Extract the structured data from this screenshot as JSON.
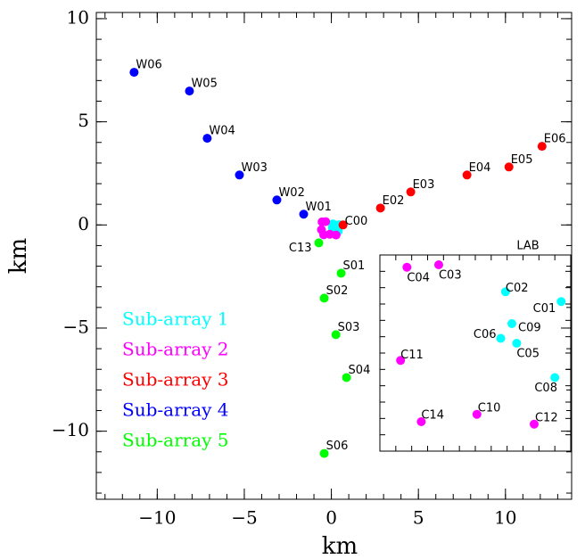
{
  "chart_data": {
    "type": "scatter",
    "x_label": "km",
    "y_label": "km",
    "xlim": [
      -13.5,
      13.8
    ],
    "ylim": [
      -13.3,
      10.3
    ],
    "xticks": [
      {
        "value": -10,
        "label": "−10"
      },
      {
        "value": -5,
        "label": "−5"
      },
      0,
      5,
      10
    ],
    "yticks": [
      {
        "value": -10,
        "label": "−10"
      },
      {
        "value": -5,
        "label": "−5"
      },
      0,
      5,
      10
    ],
    "legend": "lower left",
    "series": [
      {
        "name": "Sub-array 1",
        "color": "#00ffff",
        "labels": [
          "C01",
          "C02",
          "C05",
          "C06",
          "C08",
          "C09"
        ],
        "x": [
          0.44,
          0.09,
          0.16,
          0.06,
          0.4,
          0.13
        ],
        "y": [
          0.01,
          0.05,
          -0.16,
          -0.14,
          -0.3,
          -0.08
        ]
      },
      {
        "name": "Sub-array 2",
        "color": "#ff00ff",
        "labels": [
          "C03",
          "C04",
          "C10",
          "C11",
          "C12",
          "C14"
        ],
        "x": [
          -0.33,
          -0.53,
          -0.09,
          -0.57,
          0.27,
          -0.44
        ],
        "y": [
          0.16,
          0.15,
          -0.45,
          -0.23,
          -0.49,
          -0.48
        ]
      },
      {
        "name": "Sub-array 3",
        "color": "#ff0000",
        "labels": [
          "C00",
          "E02",
          "E03",
          "E04",
          "E05",
          "E06"
        ],
        "x": [
          0.67,
          2.82,
          4.56,
          7.79,
          10.2,
          12.1
        ],
        "y": [
          0.0,
          0.82,
          1.6,
          2.42,
          2.81,
          3.81
        ]
      },
      {
        "name": "Sub-array 4",
        "color": "#0000ff",
        "labels": [
          "W01",
          "W02",
          "W03",
          "W04",
          "W05",
          "W06"
        ],
        "x": [
          -1.59,
          -3.13,
          -5.28,
          -7.13,
          -8.15,
          -11.33
        ],
        "y": [
          0.52,
          1.21,
          2.42,
          4.2,
          6.49,
          7.4
        ]
      },
      {
        "name": "Sub-array 5",
        "color": "#00ff00",
        "labels": [
          "C13",
          "S01",
          "S02",
          "S03",
          "S04",
          "S06"
        ],
        "x": [
          -0.72,
          0.56,
          -0.41,
          0.26,
          0.87,
          -0.41
        ],
        "y": [
          -0.87,
          -2.34,
          -3.55,
          -5.32,
          -7.4,
          -11.08
        ]
      }
    ],
    "inset": {
      "title": "LAB",
      "xlim": [
        -0.7,
        0.5
      ],
      "ylim": [
        -0.6,
        0.2
      ],
      "series": [
        0,
        1
      ]
    }
  }
}
